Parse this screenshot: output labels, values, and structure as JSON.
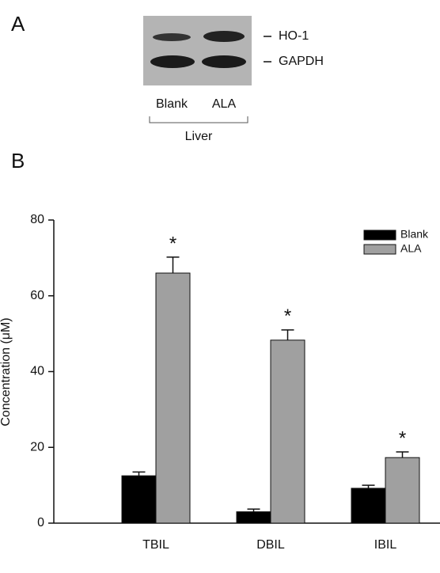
{
  "panel_a": {
    "label": "A",
    "bands": [
      "HO-1",
      "GAPDH"
    ],
    "lanes": [
      "Blank",
      "ALA"
    ],
    "tissue": "Liver"
  },
  "panel_b": {
    "label": "B"
  },
  "chart_data": {
    "type": "bar",
    "y_label": "Concentration (μM)",
    "categories": [
      "TBIL",
      "DBIL",
      "IBIL"
    ],
    "series": [
      {
        "name": "Blank",
        "color": "#000000",
        "values": [
          12.5,
          3,
          9.2
        ],
        "errors": [
          1,
          0.7,
          0.8
        ]
      },
      {
        "name": "ALA",
        "color": "#a0a0a0",
        "values": [
          66,
          48.3,
          17.3
        ],
        "errors": [
          4.2,
          2.7,
          1.5
        ]
      }
    ],
    "annotations": [
      "*",
      "*",
      "*"
    ],
    "ylim": [
      0,
      80
    ],
    "yticks": [
      0,
      20,
      40,
      60,
      80
    ],
    "legend": "upper right"
  }
}
